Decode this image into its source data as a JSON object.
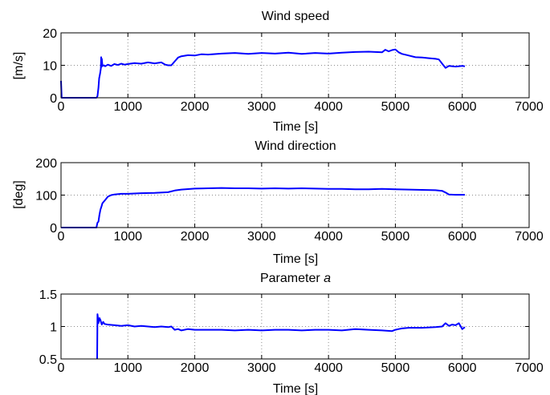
{
  "chart_data": [
    {
      "type": "line",
      "title": "Wind speed",
      "title_italic_part": "",
      "xlabel": "Time [s]",
      "ylabel": "[m/s]",
      "xlim": [
        0,
        7000
      ],
      "ylim": [
        0,
        20
      ],
      "xticks": [
        0,
        1000,
        2000,
        3000,
        4000,
        5000,
        6000,
        7000
      ],
      "yticks": [
        0,
        10,
        20
      ],
      "grid": true,
      "color": "#0000ff",
      "series": [
        {
          "x": [
            0,
            10,
            20,
            530,
            545,
            560,
            570,
            585,
            595,
            600,
            605,
            610,
            620,
            640,
            660,
            700,
            750,
            800,
            850,
            900,
            950,
            1000,
            1100,
            1200,
            1300,
            1400,
            1500,
            1560,
            1600,
            1650,
            1700,
            1750,
            1800,
            1900,
            2000,
            2100,
            2200,
            2400,
            2600,
            2800,
            3000,
            3200,
            3400,
            3600,
            3800,
            4000,
            4200,
            4400,
            4600,
            4800,
            4850,
            4900,
            4950,
            5000,
            5050,
            5100,
            5200,
            5300,
            5400,
            5500,
            5600,
            5650,
            5700,
            5750,
            5800,
            5900,
            6000,
            6040
          ],
          "y": [
            5.2,
            0,
            0,
            0,
            0.5,
            3.0,
            6.0,
            7.5,
            9.0,
            12.5,
            9.5,
            12.0,
            9.8,
            10.0,
            9.7,
            10.2,
            9.8,
            10.4,
            10.1,
            10.5,
            10.2,
            10.4,
            10.7,
            10.5,
            10.9,
            10.6,
            10.9,
            10.2,
            10.0,
            10.0,
            11.2,
            12.4,
            12.8,
            13.1,
            13.0,
            13.4,
            13.3,
            13.6,
            13.8,
            13.5,
            13.8,
            13.6,
            13.9,
            13.5,
            13.8,
            13.6,
            13.9,
            14.1,
            14.2,
            14.0,
            14.8,
            14.3,
            14.7,
            14.9,
            14.0,
            13.5,
            13.0,
            12.5,
            12.4,
            12.2,
            12.0,
            11.8,
            10.5,
            9.2,
            9.8,
            9.6,
            9.8,
            9.7
          ]
        }
      ]
    },
    {
      "type": "line",
      "title": "Wind direction",
      "title_italic_part": "",
      "xlabel": "Time [s]",
      "ylabel": "[deg]",
      "xlim": [
        0,
        7000
      ],
      "ylim": [
        0,
        200
      ],
      "xticks": [
        0,
        1000,
        2000,
        3000,
        4000,
        5000,
        6000,
        7000
      ],
      "yticks": [
        0,
        100,
        200
      ],
      "grid": true,
      "color": "#0000ff",
      "series": [
        {
          "x": [
            0,
            530,
            545,
            560,
            575,
            590,
            605,
            620,
            640,
            660,
            680,
            700,
            750,
            800,
            900,
            1000,
            1200,
            1400,
            1600,
            1700,
            1800,
            2000,
            2200,
            2400,
            2600,
            2800,
            3000,
            3200,
            3400,
            3600,
            3800,
            4000,
            4200,
            4400,
            4600,
            4800,
            5000,
            5200,
            5400,
            5600,
            5700,
            5750,
            5800,
            5900,
            6000,
            6040
          ],
          "y": [
            0,
            0,
            15,
            18,
            40,
            55,
            65,
            75,
            80,
            85,
            90,
            95,
            100,
            102,
            104,
            104,
            106,
            107,
            109,
            114,
            117,
            120,
            121,
            122,
            121,
            121,
            120,
            121,
            120,
            121,
            120,
            119,
            119,
            118,
            118,
            119,
            118,
            117,
            116,
            115,
            113,
            108,
            102,
            101,
            101,
            101
          ]
        }
      ]
    },
    {
      "type": "line",
      "title": "Parameter ",
      "title_italic_part": "a",
      "xlabel": "Time [s]",
      "ylabel": "",
      "xlim": [
        0,
        7000
      ],
      "ylim": [
        0.5,
        1.5
      ],
      "xticks": [
        0,
        1000,
        2000,
        3000,
        4000,
        5000,
        6000,
        7000
      ],
      "yticks": [
        0.5,
        1,
        1.5
      ],
      "ytick_labels": [
        "0.5",
        "1",
        "1.5"
      ],
      "grid": true,
      "color": "#0000ff",
      "series": [
        {
          "x": [
            540,
            545,
            550,
            560,
            575,
            590,
            600,
            610,
            630,
            650,
            700,
            800,
            900,
            1000,
            1100,
            1200,
            1300,
            1400,
            1500,
            1600,
            1650,
            1700,
            1750,
            1800,
            1900,
            2000,
            2200,
            2400,
            2600,
            2800,
            3000,
            3200,
            3400,
            3600,
            3800,
            4000,
            4200,
            4400,
            4600,
            4800,
            4950,
            5000,
            5050,
            5100,
            5200,
            5400,
            5600,
            5700,
            5750,
            5800,
            5850,
            5900,
            5950,
            6000,
            6040
          ],
          "y": [
            0.5,
            1.19,
            1.15,
            1.05,
            1.13,
            1.1,
            1.06,
            1.03,
            1.07,
            1.04,
            1.03,
            1.02,
            1.01,
            1.02,
            1.0,
            1.01,
            1.0,
            0.99,
            1.0,
            0.99,
            1.0,
            0.95,
            0.96,
            0.94,
            0.96,
            0.95,
            0.95,
            0.95,
            0.94,
            0.95,
            0.94,
            0.95,
            0.95,
            0.94,
            0.95,
            0.95,
            0.94,
            0.96,
            0.95,
            0.94,
            0.93,
            0.95,
            0.96,
            0.97,
            0.98,
            0.98,
            0.99,
            1.0,
            1.05,
            1.01,
            1.03,
            1.02,
            1.05,
            0.96,
            0.99
          ]
        }
      ]
    }
  ]
}
